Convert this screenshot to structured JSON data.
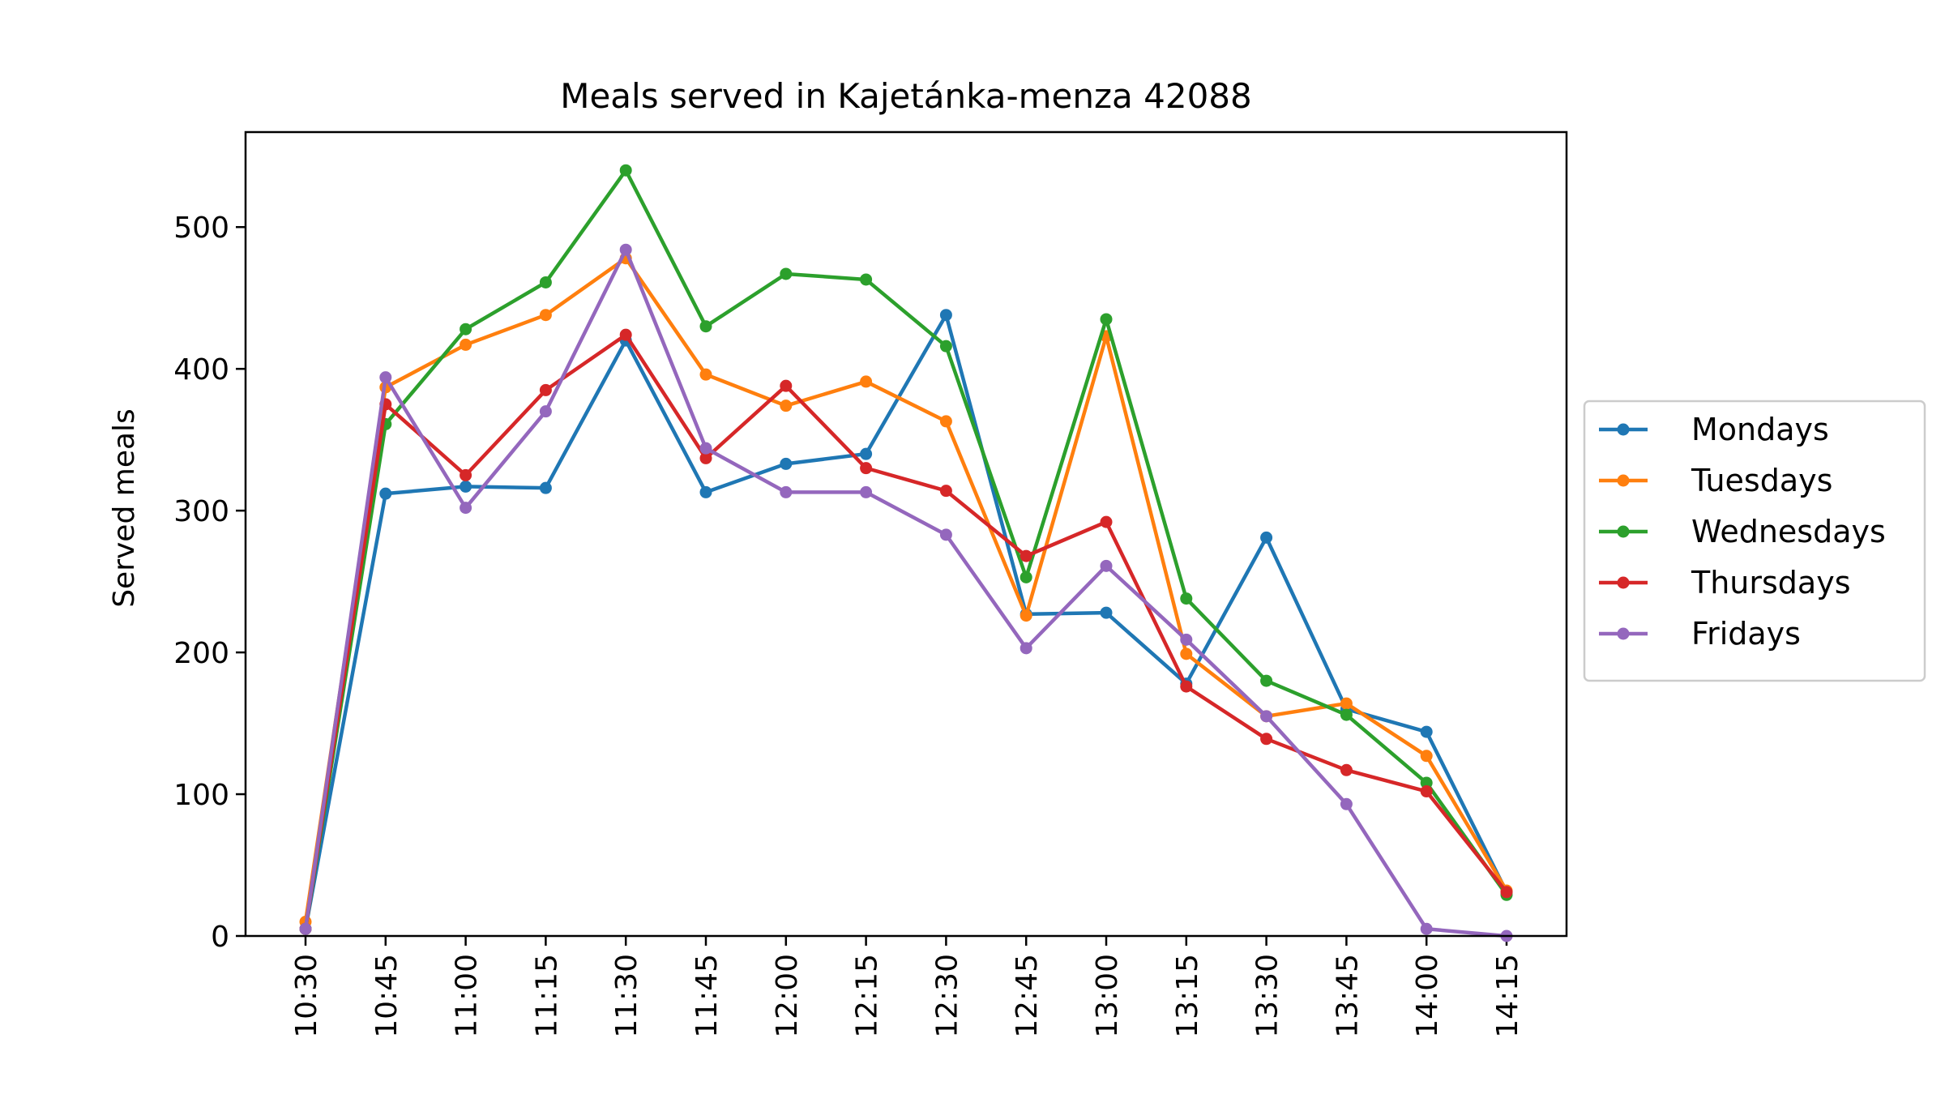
{
  "chart_data": {
    "type": "line",
    "title": "Meals served in Kajetánka-menza 42088",
    "xlabel": "",
    "ylabel": "Served meals",
    "categories": [
      "10:30",
      "10:45",
      "11:00",
      "11:15",
      "11:30",
      "11:45",
      "12:00",
      "12:15",
      "12:30",
      "12:45",
      "13:00",
      "13:15",
      "13:30",
      "13:45",
      "14:00",
      "14:15"
    ],
    "ylim": [
      0,
      567
    ],
    "yticks": [
      0,
      100,
      200,
      300,
      400,
      500
    ],
    "grid": false,
    "legend_position": "right",
    "series": [
      {
        "name": "Mondays",
        "color": "#1f77b4",
        "values": [
          5,
          312,
          317,
          316,
          420,
          313,
          333,
          340,
          438,
          227,
          228,
          178,
          281,
          160,
          144,
          31
        ]
      },
      {
        "name": "Tuesdays",
        "color": "#ff7f0e",
        "values": [
          10,
          387,
          417,
          438,
          478,
          396,
          374,
          391,
          363,
          226,
          423,
          199,
          155,
          164,
          127,
          32
        ]
      },
      {
        "name": "Wednesdays",
        "color": "#2ca02c",
        "values": [
          5,
          361,
          428,
          461,
          540,
          430,
          467,
          463,
          416,
          253,
          435,
          238,
          180,
          156,
          108,
          29
        ]
      },
      {
        "name": "Thursdays",
        "color": "#d62728",
        "values": [
          5,
          375,
          325,
          385,
          424,
          337,
          388,
          330,
          314,
          268,
          292,
          176,
          139,
          117,
          102,
          31
        ]
      },
      {
        "name": "Fridays",
        "color": "#9467bd",
        "values": [
          5,
          394,
          302,
          370,
          484,
          344,
          313,
          313,
          283,
          203,
          261,
          209,
          155,
          93,
          5,
          0
        ]
      }
    ]
  }
}
